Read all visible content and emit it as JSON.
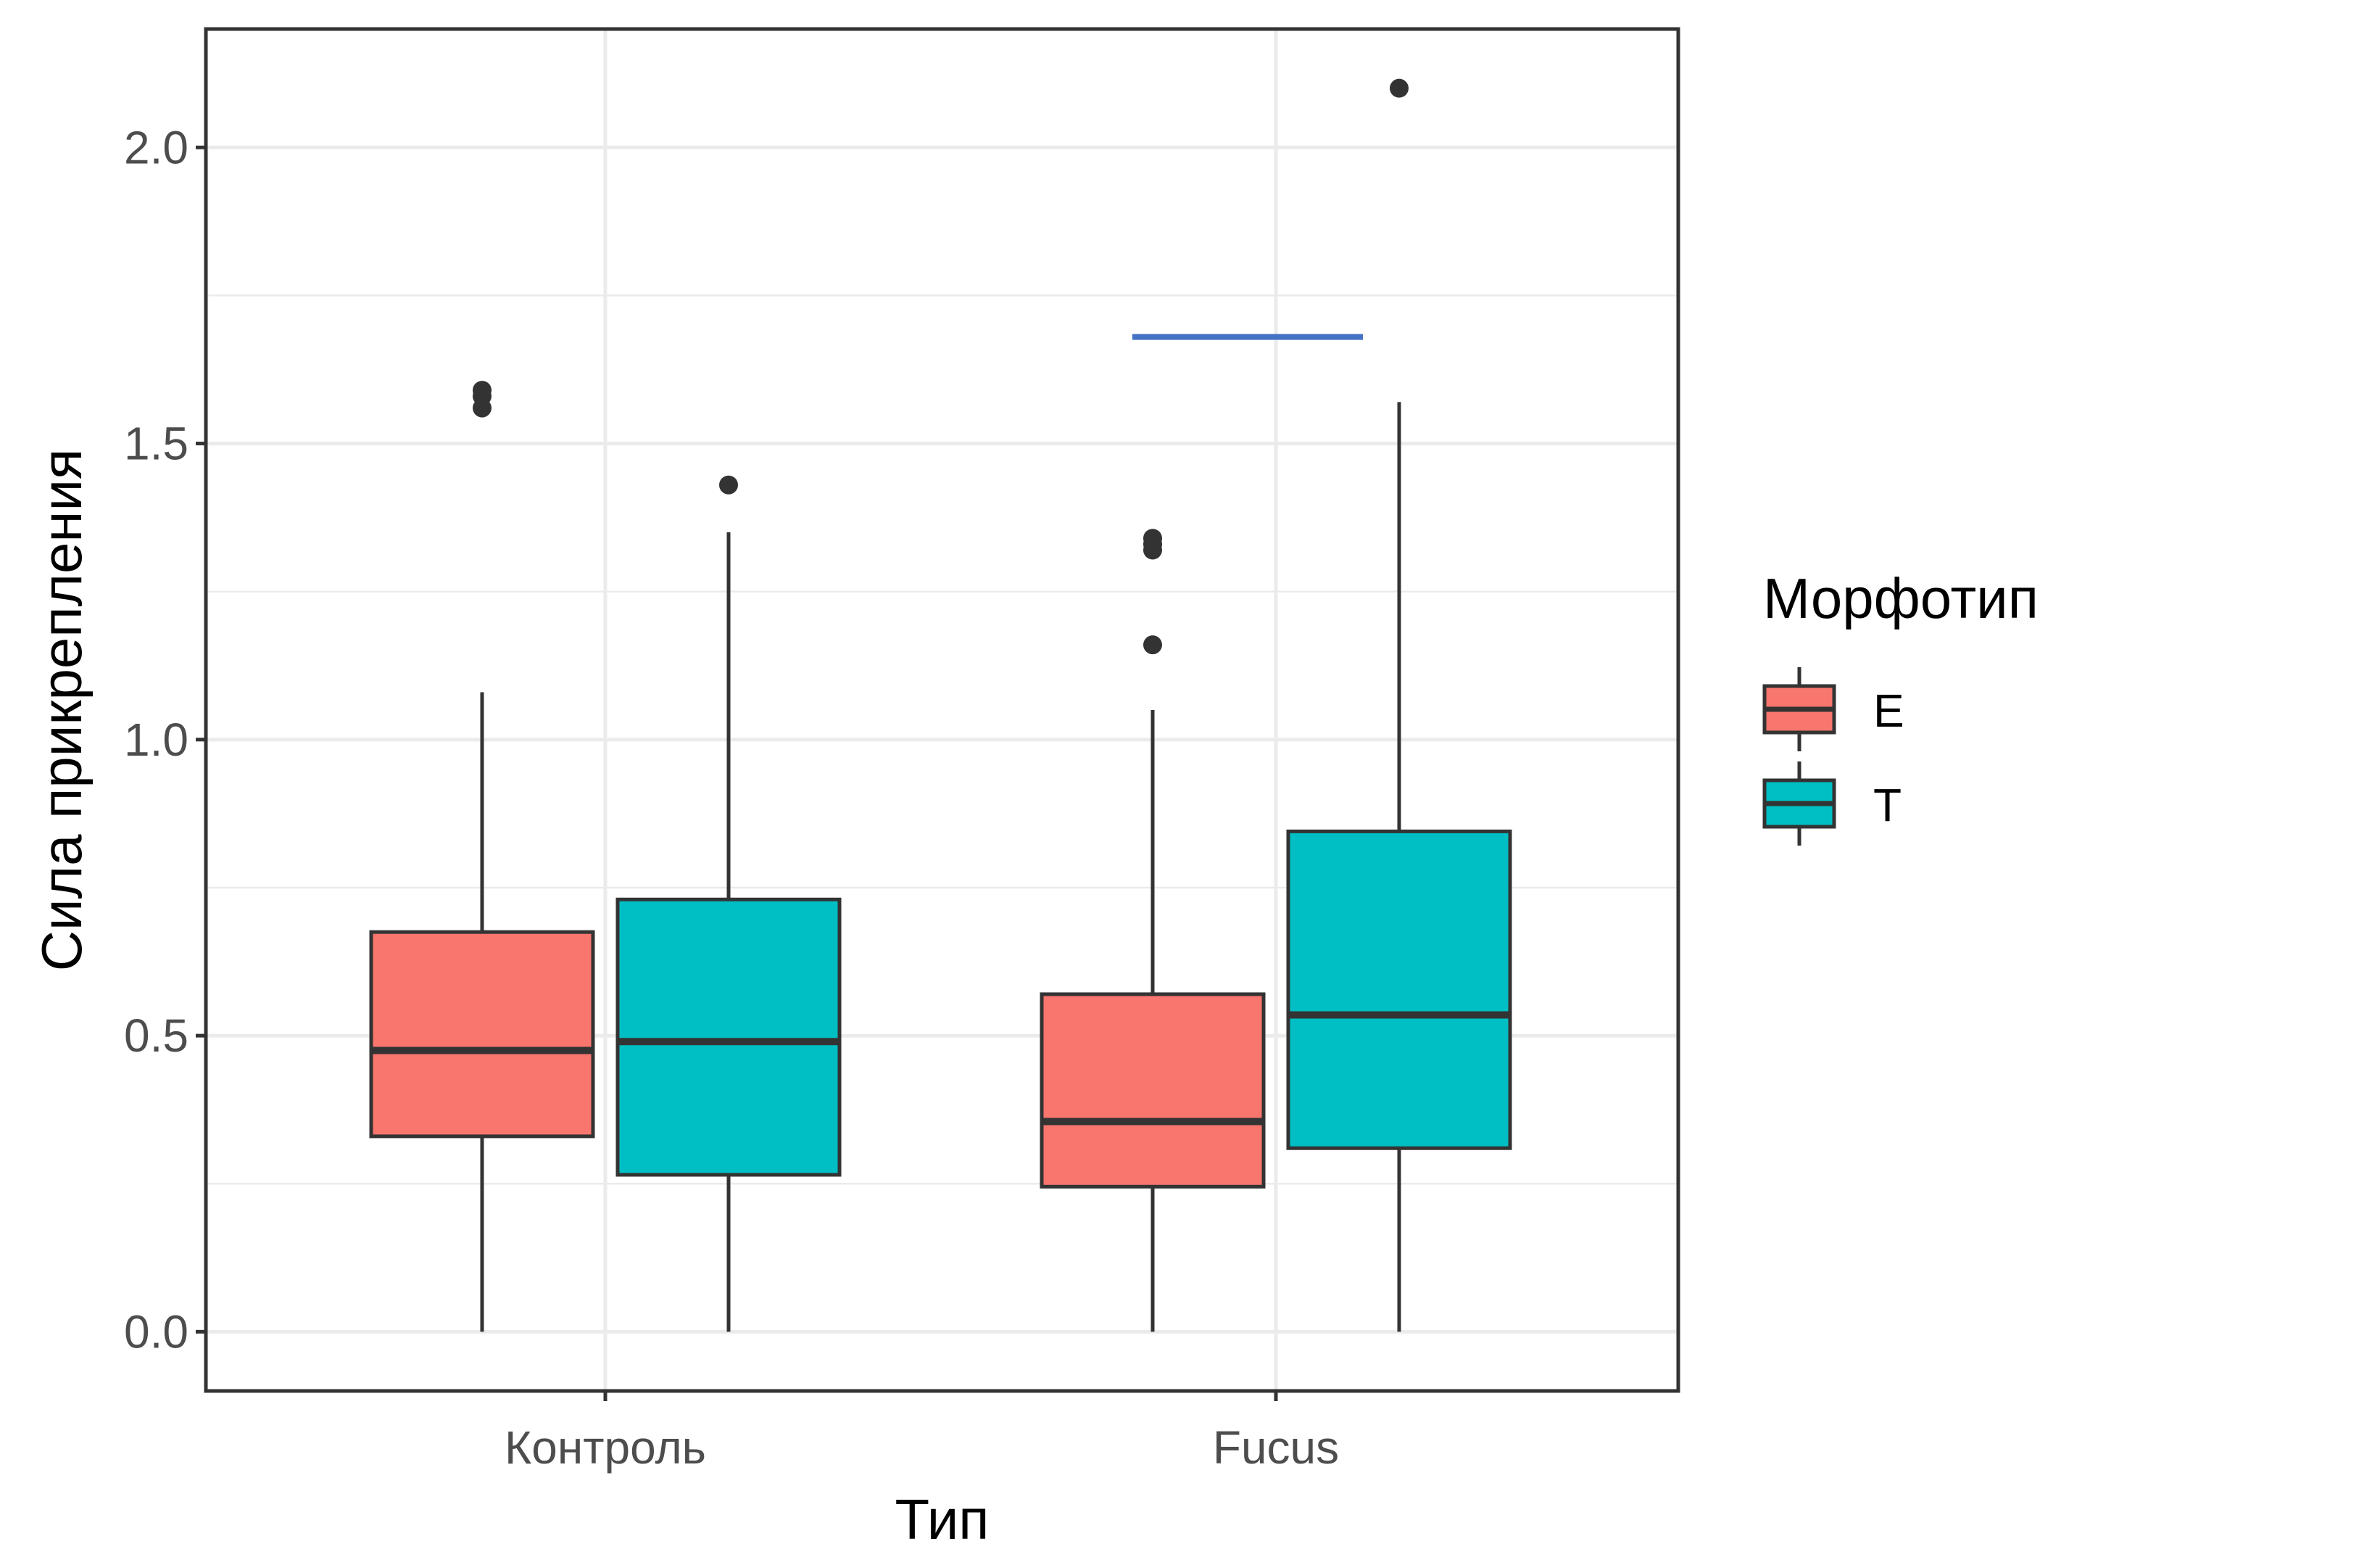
{
  "chart_data": {
    "type": "boxplot",
    "xlabel": "Тип",
    "ylabel": "Сила прикрепления",
    "ylim": [
      -0.1,
      2.2
    ],
    "y_ticks": [
      "0.0",
      "0.5",
      "1.0",
      "1.5",
      "2.0"
    ],
    "y_tick_values": [
      0,
      0.5,
      1.0,
      1.5,
      2.0
    ],
    "categories": [
      "Контроль",
      "Fucus"
    ],
    "grid": "on",
    "legend": {
      "title": "Морфотип",
      "placement": "right",
      "entries": [
        {
          "label": "E",
          "color": "#F8766D"
        },
        {
          "label": "T",
          "color": "#00BFC4"
        }
      ]
    },
    "series": [
      {
        "name": "E",
        "color": "#F8766D",
        "boxes": [
          {
            "category": "Контроль",
            "min": 0.0,
            "q1": 0.33,
            "median": 0.475,
            "q3": 0.675,
            "max": 1.08,
            "outliers": [
              1.56,
              1.58,
              1.59
            ]
          },
          {
            "category": "Fucus",
            "min": 0.0,
            "q1": 0.245,
            "median": 0.355,
            "q3": 0.57,
            "max": 1.05,
            "outliers": [
              1.16,
              1.32,
              1.33,
              1.34
            ]
          }
        ]
      },
      {
        "name": "T",
        "color": "#00BFC4",
        "boxes": [
          {
            "category": "Контроль",
            "min": 0.0,
            "q1": 0.265,
            "median": 0.49,
            "q3": 0.73,
            "max": 1.35,
            "outliers": [
              1.43
            ]
          },
          {
            "category": "Fucus",
            "min": 0.0,
            "q1": 0.31,
            "median": 0.535,
            "q3": 0.845,
            "max": 1.57,
            "outliers": [
              2.1
            ]
          }
        ]
      }
    ],
    "annotations": [
      {
        "type": "line",
        "color": "#4472C4",
        "y": 1.68,
        "from_category": "Fucus",
        "series_from": "E",
        "series_to": "T"
      }
    ]
  }
}
